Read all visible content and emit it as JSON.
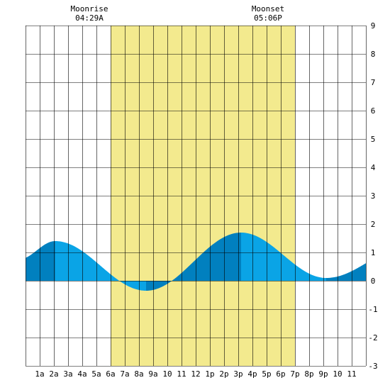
{
  "chart_data": {
    "type": "area",
    "title": "",
    "xlabel": "",
    "ylabel": "",
    "x_ticks": [
      "1a",
      "2a",
      "3a",
      "4a",
      "5a",
      "6a",
      "7a",
      "8a",
      "9a",
      "10",
      "11",
      "12",
      "1p",
      "2p",
      "3p",
      "4p",
      "5p",
      "6p",
      "7p",
      "8p",
      "9p",
      "10",
      "11"
    ],
    "y_ticks": [
      "-3",
      "-2",
      "-1",
      "0",
      "1",
      "2",
      "3",
      "4",
      "5",
      "6",
      "7",
      "8",
      "9"
    ],
    "xlim": [
      0,
      24
    ],
    "ylim": [
      -3,
      9
    ],
    "grid": true,
    "daylight": {
      "start_hour": 6.0,
      "end_hour": 19.0
    },
    "moon_events": [
      {
        "label": "Moonrise",
        "time": "04:29A",
        "hour": 4.5
      },
      {
        "label": "Moonset",
        "time": "05:06P",
        "hour": 17.1
      }
    ],
    "tide_extrema": [
      {
        "hour": -0.5,
        "height": 0.75,
        "type": "low"
      },
      {
        "hour": 2.1,
        "height": 1.4,
        "type": "high"
      },
      {
        "hour": 8.5,
        "height": -0.35,
        "type": "low"
      },
      {
        "hour": 15.2,
        "height": 1.7,
        "type": "high"
      },
      {
        "hour": 21.2,
        "height": 0.1,
        "type": "low"
      },
      {
        "hour": 27.0,
        "height": 1.2,
        "type": "high"
      }
    ],
    "colors": {
      "daylight": "#f3ea8e",
      "tide_light": "#0aa4e6",
      "tide_dark": "#0180bf",
      "grid": "#000000"
    }
  }
}
